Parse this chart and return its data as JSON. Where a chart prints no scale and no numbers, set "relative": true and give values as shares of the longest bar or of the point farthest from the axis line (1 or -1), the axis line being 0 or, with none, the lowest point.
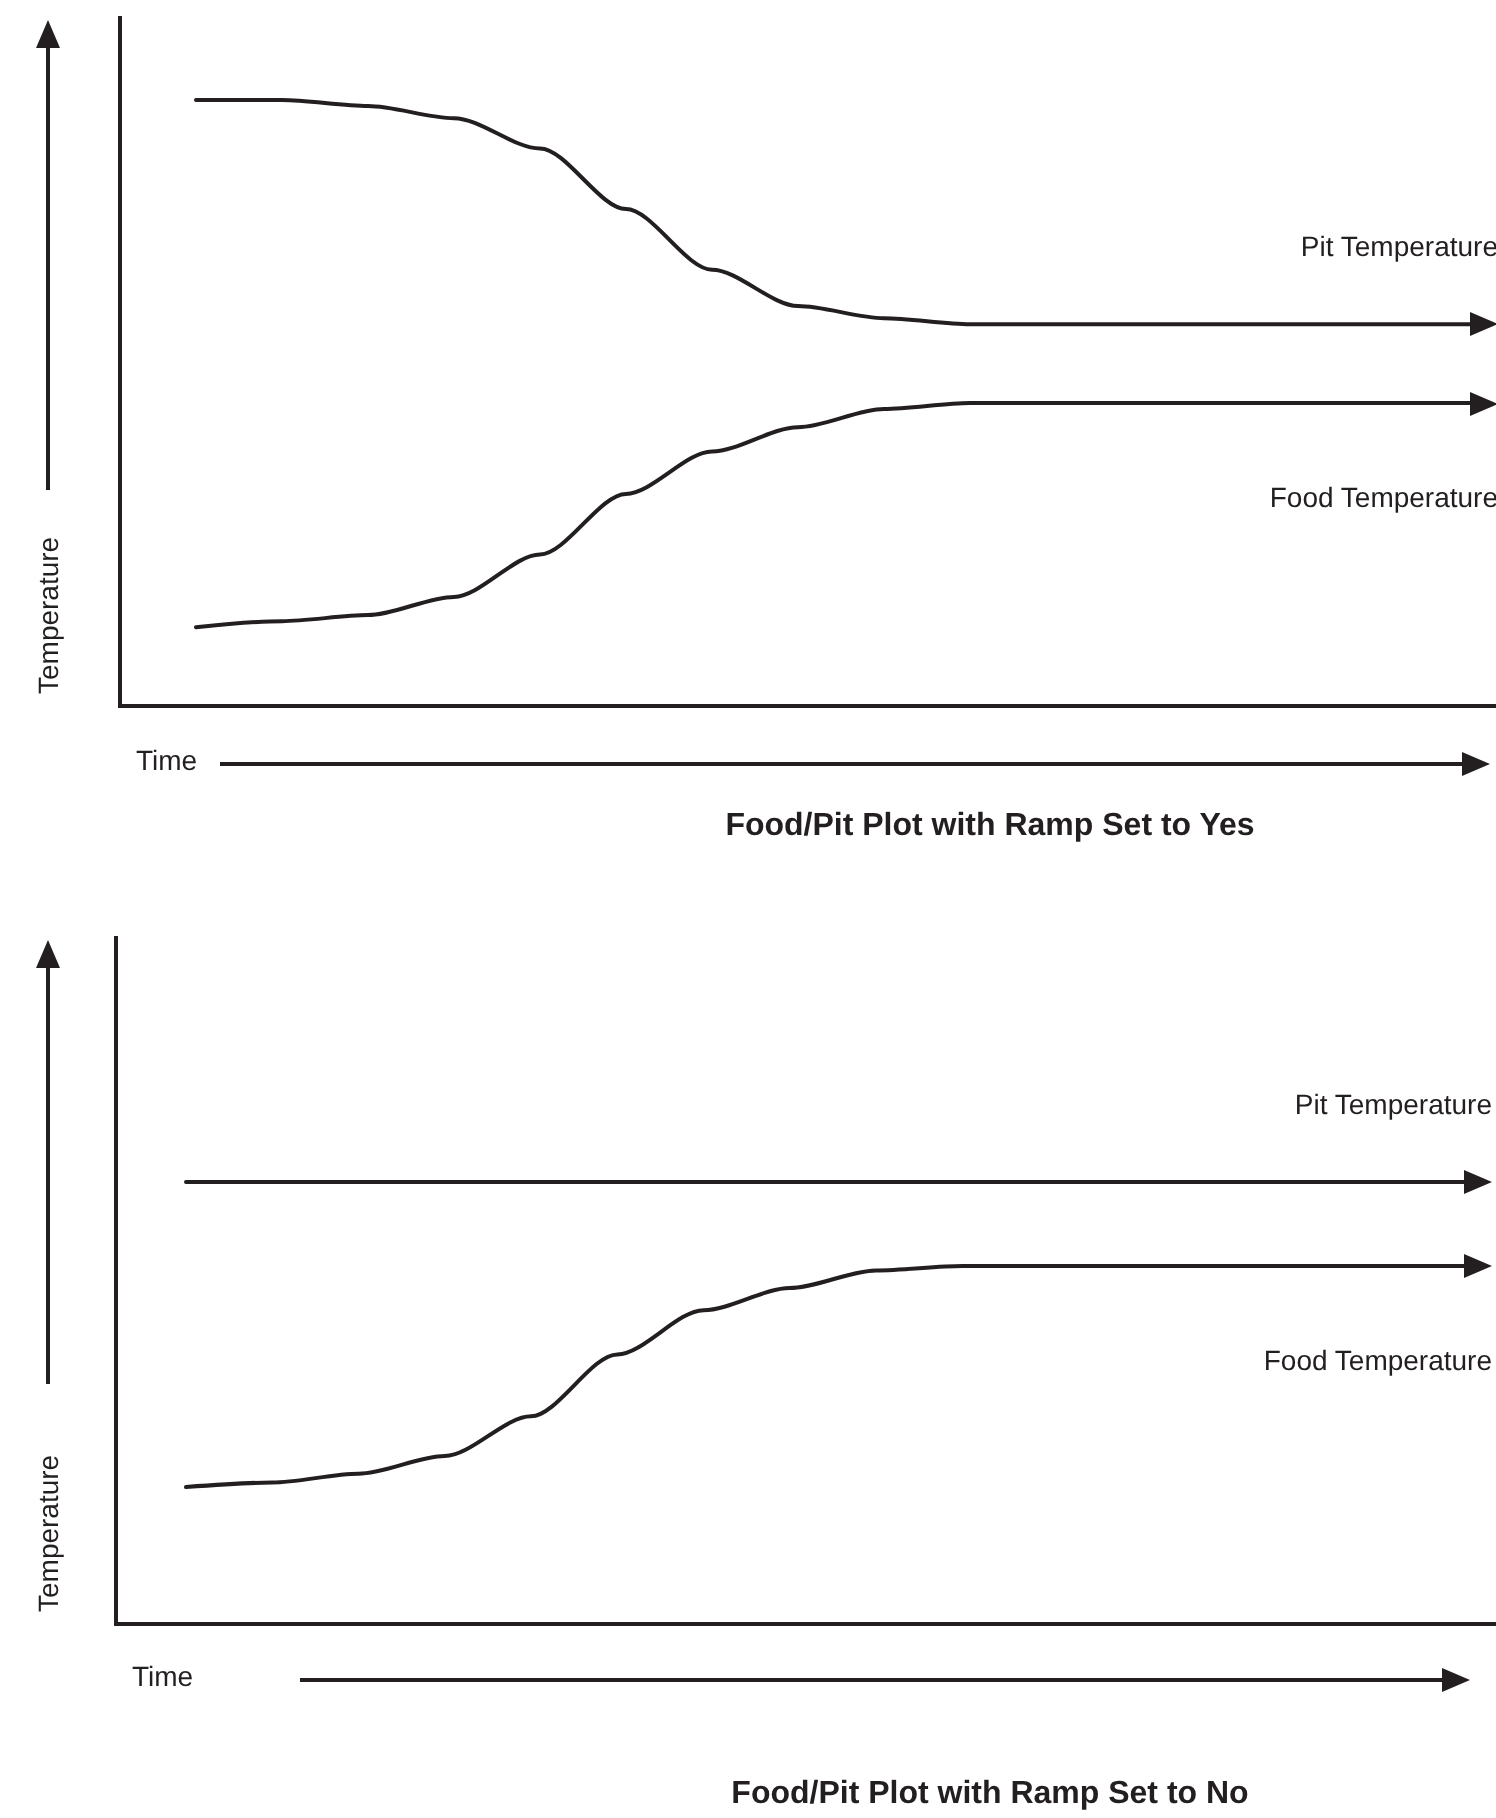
{
  "chart_data": [
    {
      "type": "line",
      "title": "Food/Pit Plot with Ramp Set to Yes",
      "xlabel": "Time",
      "ylabel": "Temperature",
      "relative": true,
      "categories": [
        null,
        null,
        null,
        null,
        null,
        null,
        null,
        null,
        null,
        null,
        null,
        null,
        null,
        null,
        null,
        null
      ],
      "series": [
        {
          "name": "Pit Temperature",
          "color": "#231f20",
          "values": [
            1,
            1,
            0.99,
            0.97,
            0.92,
            0.82,
            0.72,
            0.66,
            0.64,
            0.63,
            0.63,
            0.63,
            0.63,
            0.63,
            0.63,
            0.63
          ]
        },
        {
          "name": "Food Temperature",
          "color": "#231f20",
          "values": [
            0.13,
            0.14,
            0.15,
            0.18,
            0.25,
            0.35,
            0.42,
            0.46,
            0.49,
            0.5,
            0.5,
            0.5,
            0.5,
            0.5,
            0.5,
            0.5
          ]
        }
      ]
    },
    {
      "type": "line",
      "title": "Food/Pit Plot with Ramp Set to No",
      "xlabel": "Time",
      "ylabel": "Temperature",
      "relative": true,
      "categories": [
        null,
        null,
        null,
        null,
        null,
        null,
        null,
        null,
        null,
        null,
        null,
        null,
        null,
        null,
        null,
        null
      ],
      "series": [
        {
          "name": "Pit Temperature",
          "color": "#231f20",
          "values": [
            1,
            1,
            1,
            1,
            1,
            1,
            1,
            1,
            1,
            1,
            1,
            1,
            1,
            1,
            1,
            1
          ]
        },
        {
          "name": "Food Temperature",
          "color": "#231f20",
          "values": [
            0.31,
            0.32,
            0.34,
            0.38,
            0.47,
            0.61,
            0.71,
            0.76,
            0.8,
            0.81,
            0.81,
            0.81,
            0.81,
            0.81,
            0.81,
            0.81
          ]
        }
      ]
    }
  ]
}
